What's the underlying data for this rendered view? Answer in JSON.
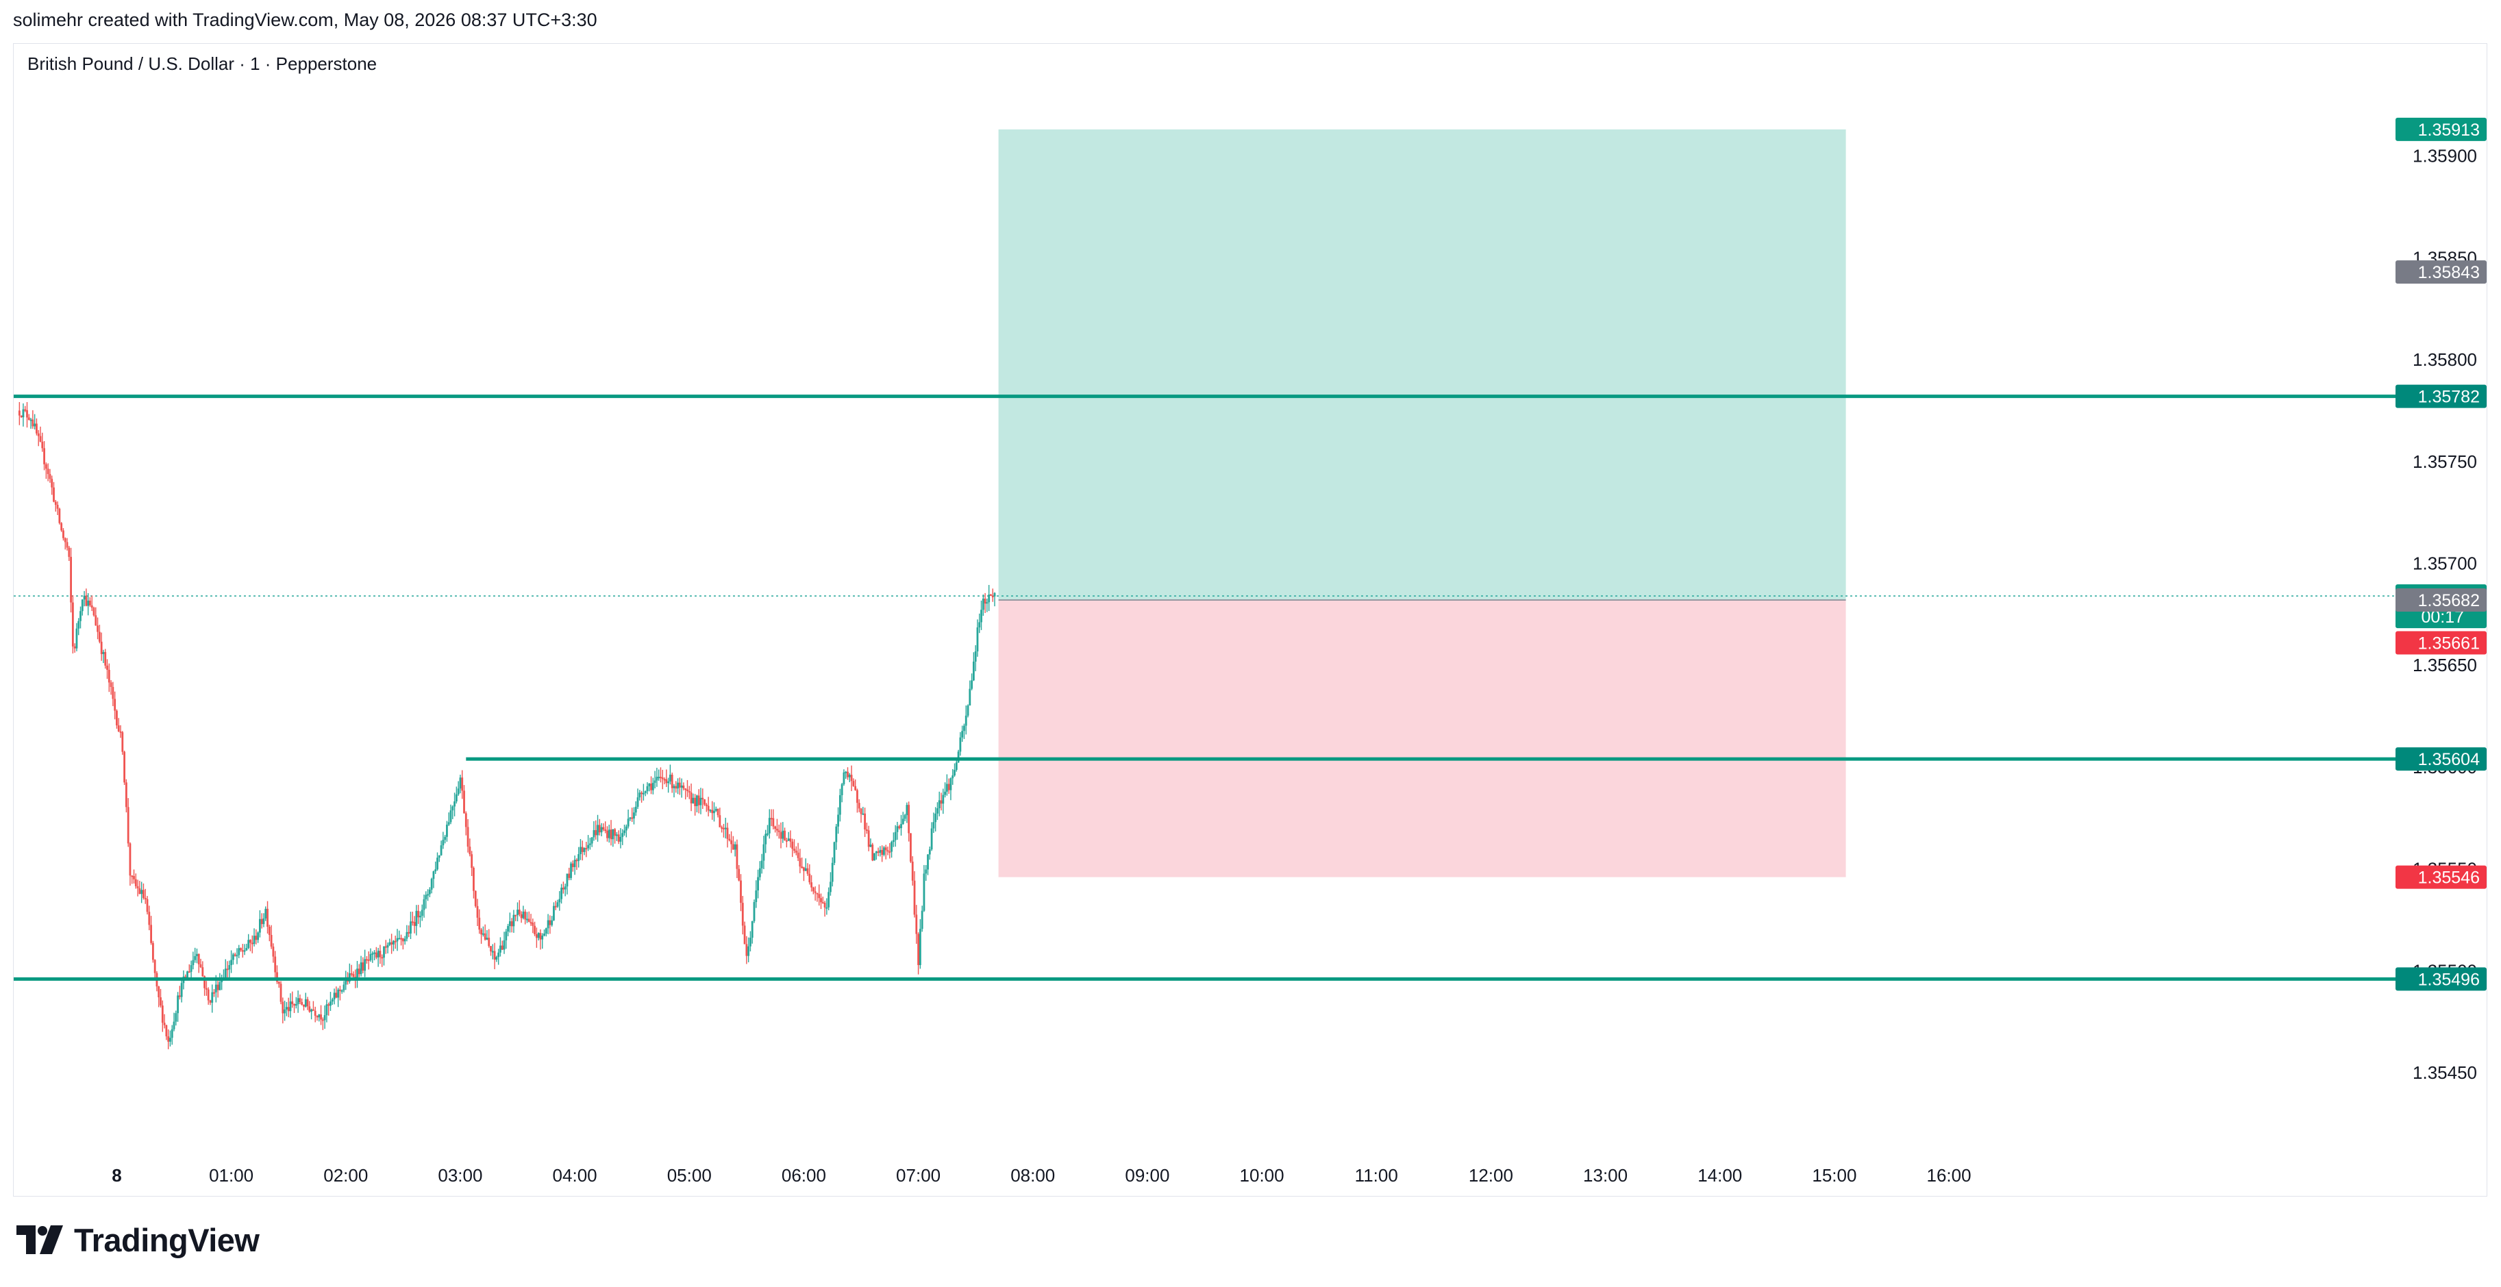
{
  "header": {
    "credit": "solimehr created with TradingView.com, May 08, 2026 08:37 UTC+3:30",
    "symbol_line": "British Pound / U.S. Dollar · 1 · Pepperstone"
  },
  "footer": {
    "brand": "TradingView"
  },
  "colors": {
    "up": "#26a69a",
    "down": "#ef5350",
    "level_line": "#089981",
    "target_zone": "#c2e8e1",
    "stop_zone": "#fbd6dc",
    "tag_green": "#089981",
    "tag_gray": "#787b86",
    "tag_red": "#f23645",
    "tag_teal": "#00897b"
  },
  "chart_data": {
    "type": "candlestick",
    "title": "British Pound / U.S. Dollar · 1 · Pepperstone",
    "x_ticks": [
      "8",
      "01:00",
      "02:00",
      "03:00",
      "04:00",
      "05:00",
      "06:00",
      "07:00",
      "08:00",
      "09:00",
      "10:00",
      "11:00",
      "12:00",
      "13:00",
      "14:00",
      "15:00",
      "16:00"
    ],
    "x_tick_hours": [
      0,
      1,
      2,
      3,
      4,
      5,
      6,
      7,
      8,
      9,
      10,
      11,
      12,
      13,
      14,
      15,
      16
    ],
    "xlim_hours": [
      -0.9,
      19.9
    ],
    "ylim": [
      1.35405,
      1.35955
    ],
    "y_ticks": [
      "1.35450",
      "1.35500",
      "1.35550",
      "1.35600",
      "1.35650",
      "1.35700",
      "1.35750",
      "1.35800",
      "1.35850",
      "1.35900"
    ],
    "y_tick_values": [
      1.3545,
      1.355,
      1.3555,
      1.356,
      1.3565,
      1.357,
      1.3575,
      1.358,
      1.3585,
      1.359
    ],
    "price_path": [
      [
        -0.85,
        1.35775
      ],
      [
        -0.75,
        1.35772
      ],
      [
        -0.6,
        1.35745
      ],
      [
        -0.48,
        1.35715
      ],
      [
        -0.42,
        1.35705
      ],
      [
        -0.38,
        1.35655
      ],
      [
        -0.3,
        1.35685
      ],
      [
        -0.2,
        1.35675
      ],
      [
        -0.08,
        1.35645
      ],
      [
        0.05,
        1.3561
      ],
      [
        0.12,
        1.35545
      ],
      [
        0.25,
        1.35535
      ],
      [
        0.35,
        1.3549
      ],
      [
        0.45,
        1.35465
      ],
      [
        0.55,
        1.3549
      ],
      [
        0.7,
        1.3551
      ],
      [
        0.8,
        1.35485
      ],
      [
        1.0,
        1.35505
      ],
      [
        1.2,
        1.35515
      ],
      [
        1.3,
        1.3553
      ],
      [
        1.45,
        1.3548
      ],
      [
        1.6,
        1.35485
      ],
      [
        1.8,
        1.35478
      ],
      [
        2.0,
        1.35495
      ],
      [
        2.2,
        1.35505
      ],
      [
        2.5,
        1.35515
      ],
      [
        2.7,
        1.35535
      ],
      [
        2.85,
        1.35565
      ],
      [
        3.0,
        1.35595
      ],
      [
        3.15,
        1.35525
      ],
      [
        3.3,
        1.35505
      ],
      [
        3.5,
        1.3553
      ],
      [
        3.7,
        1.35515
      ],
      [
        3.9,
        1.3554
      ],
      [
        4.0,
        1.35555
      ],
      [
        4.2,
        1.3557
      ],
      [
        4.4,
        1.35565
      ],
      [
        4.6,
        1.3559
      ],
      [
        4.8,
        1.35595
      ],
      [
        5.0,
        1.35585
      ],
      [
        5.2,
        1.3558
      ],
      [
        5.4,
        1.3556
      ],
      [
        5.5,
        1.35505
      ],
      [
        5.6,
        1.35545
      ],
      [
        5.7,
        1.35575
      ],
      [
        5.9,
        1.3556
      ],
      [
        6.05,
        1.35545
      ],
      [
        6.2,
        1.3553
      ],
      [
        6.35,
        1.356
      ],
      [
        6.5,
        1.3558
      ],
      [
        6.6,
        1.35555
      ],
      [
        6.75,
        1.3556
      ],
      [
        6.9,
        1.3558
      ],
      [
        7.0,
        1.35505
      ],
      [
        7.05,
        1.35545
      ],
      [
        7.15,
        1.3558
      ],
      [
        7.3,
        1.35595
      ],
      [
        7.42,
        1.35625
      ],
      [
        7.55,
        1.3568
      ],
      [
        7.65,
        1.35685
      ]
    ],
    "current": {
      "x": 7.68,
      "price": 1.35684,
      "countdown": "00:17"
    },
    "horizontal_lines": [
      {
        "price": 1.35782,
        "x_start": -0.9,
        "label": "1.35782"
      },
      {
        "price": 1.35604,
        "x_start": 3.05,
        "label": "1.35604"
      },
      {
        "price": 1.35496,
        "x_start": -0.9,
        "label": "1.35496"
      }
    ],
    "position": {
      "x_start": 7.7,
      "x_end": 15.1,
      "entry": 1.35682,
      "target": 1.35913,
      "stop": 1.35546
    },
    "price_tags": [
      {
        "price": 1.35913,
        "label": "1.35913",
        "color": "#089981"
      },
      {
        "price": 1.35843,
        "label": "1.35843",
        "color": "#787b86"
      },
      {
        "price": 1.35782,
        "label": "1.35782",
        "color": "#00897b"
      },
      {
        "price": 1.35684,
        "label": "1.35684",
        "color": "#089981",
        "sub": "00:17"
      },
      {
        "price": 1.35682,
        "label": "1.35682",
        "color": "#787b86"
      },
      {
        "price": 1.35661,
        "label": "1.35661",
        "color": "#f23645"
      },
      {
        "price": 1.35604,
        "label": "1.35604",
        "color": "#00897b"
      },
      {
        "price": 1.35546,
        "label": "1.35546",
        "color": "#f23645"
      },
      {
        "price": 1.35496,
        "label": "1.35496",
        "color": "#00897b"
      }
    ]
  }
}
